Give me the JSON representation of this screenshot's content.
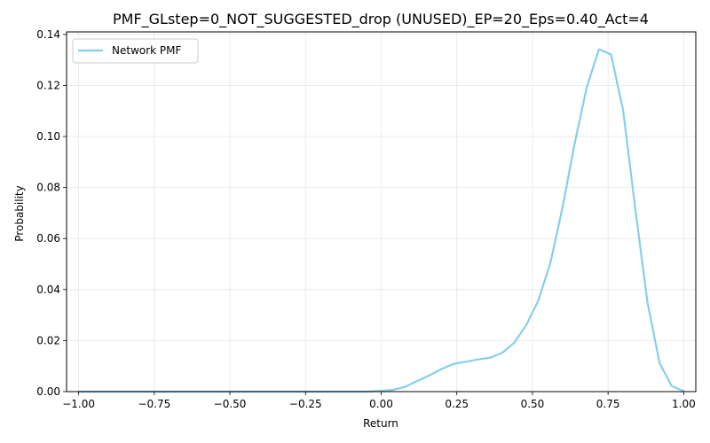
{
  "chart_data": {
    "type": "line",
    "title": "PMF_GLstep=0_NOT_SUGGESTED_drop (UNUSED)_EP=20_Eps=0.40_Act=4",
    "xlabel": "Return",
    "ylabel": "Probability",
    "xlim": [
      -1.04,
      1.04
    ],
    "ylim": [
      0,
      0.141
    ],
    "xticks": [
      -1.0,
      -0.75,
      -0.5,
      -0.25,
      0.0,
      0.25,
      0.5,
      0.75,
      1.0
    ],
    "xtick_labels": [
      "−1.00",
      "−0.75",
      "−0.50",
      "−0.25",
      "0.00",
      "0.25",
      "0.50",
      "0.75",
      "1.00"
    ],
    "yticks": [
      0.0,
      0.02,
      0.04,
      0.06,
      0.08,
      0.1,
      0.12,
      0.14
    ],
    "ytick_labels": [
      "0.00",
      "0.02",
      "0.04",
      "0.06",
      "0.08",
      "0.10",
      "0.12",
      "0.14"
    ],
    "grid": true,
    "legend": "top-left",
    "series": [
      {
        "name": "Network PMF",
        "color": "#87ceeb",
        "x": [
          -1.0,
          -0.96,
          -0.92,
          -0.88,
          -0.84,
          -0.8,
          -0.76,
          -0.72,
          -0.68,
          -0.64,
          -0.6,
          -0.56,
          -0.52,
          -0.48,
          -0.44,
          -0.4,
          -0.36,
          -0.32,
          -0.28,
          -0.24,
          -0.2,
          -0.16,
          -0.12,
          -0.08,
          -0.04,
          0.0,
          0.04,
          0.08,
          0.12,
          0.16,
          0.2,
          0.24,
          0.28,
          0.32,
          0.36,
          0.4,
          0.44,
          0.48,
          0.52,
          0.56,
          0.6,
          0.64,
          0.68,
          0.72,
          0.76,
          0.8,
          0.84,
          0.88,
          0.92,
          0.96,
          1.0
        ],
        "y": [
          0,
          0,
          0,
          0,
          0,
          0,
          0,
          0,
          0,
          0,
          0,
          0,
          0,
          0,
          0,
          0,
          0,
          0,
          0,
          0,
          0,
          0,
          0,
          0,
          0,
          0.0003,
          0.0007,
          0.0019,
          0.0042,
          0.0064,
          0.0089,
          0.0109,
          0.0117,
          0.0126,
          0.0133,
          0.0152,
          0.0192,
          0.0262,
          0.0358,
          0.0508,
          0.0725,
          0.0975,
          0.1195,
          0.1342,
          0.1321,
          0.1101,
          0.0717,
          0.0352,
          0.0113,
          0.0022,
          0.0002
        ]
      }
    ]
  }
}
